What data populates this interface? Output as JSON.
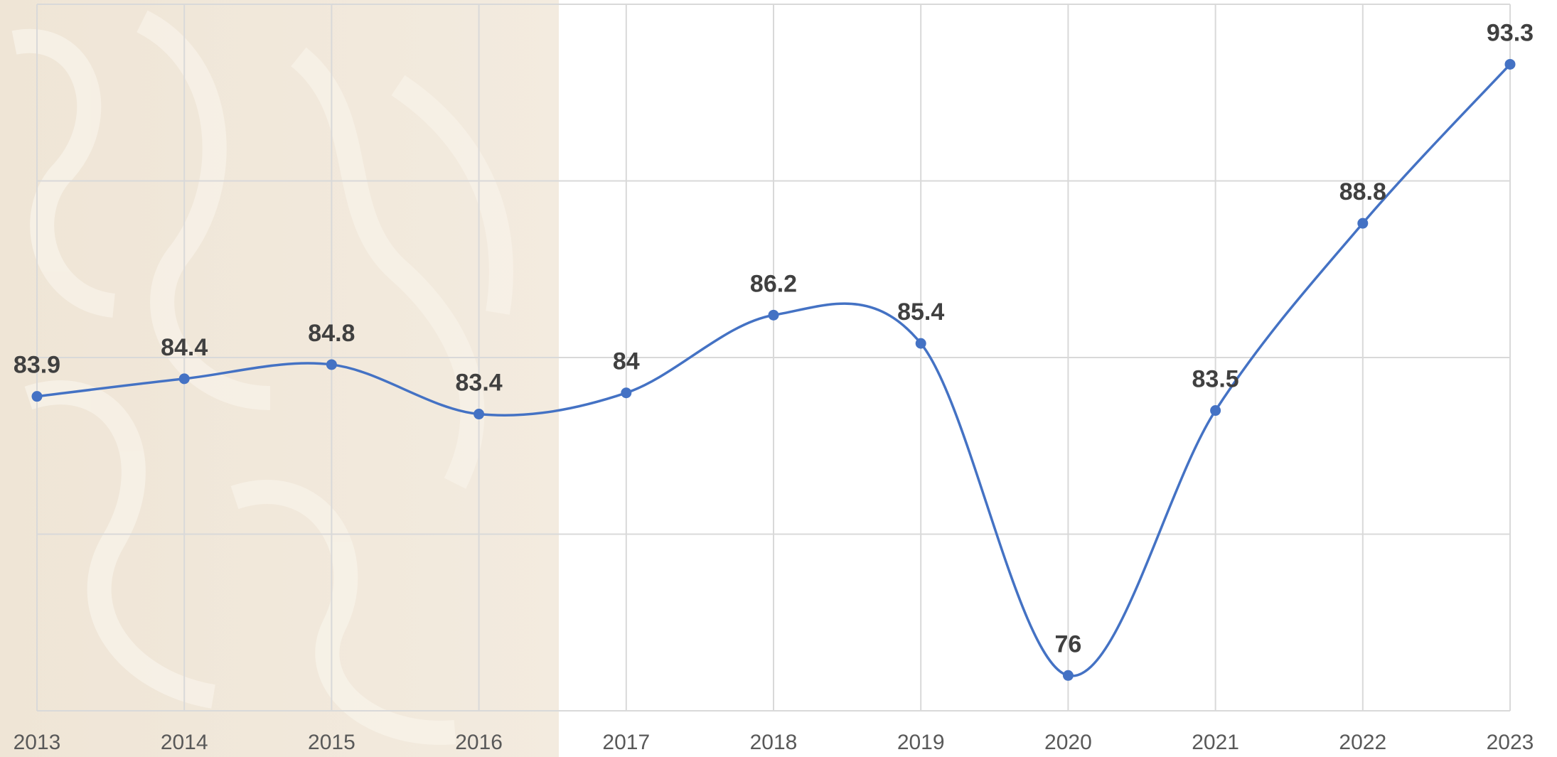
{
  "chart_data": {
    "type": "line",
    "x": [
      2013,
      2014,
      2015,
      2016,
      2017,
      2018,
      2019,
      2020,
      2021,
      2022,
      2023
    ],
    "series": [
      {
        "color": "#4472c4",
        "values": [
          83.9,
          84.4,
          84.8,
          83.4,
          84.0,
          86.2,
          85.4,
          76.0,
          83.5,
          88.8,
          93.3
        ]
      }
    ],
    "xlim": [
      2013,
      2023
    ],
    "xticks": [
      2013,
      2014,
      2015,
      2016,
      2017,
      2018,
      2019,
      2020,
      2021,
      2022,
      2023
    ],
    "ylim": [
      75,
      95
    ],
    "yticks": [
      75,
      80,
      85,
      90,
      95
    ],
    "grid": true,
    "smooth": true
  }
}
